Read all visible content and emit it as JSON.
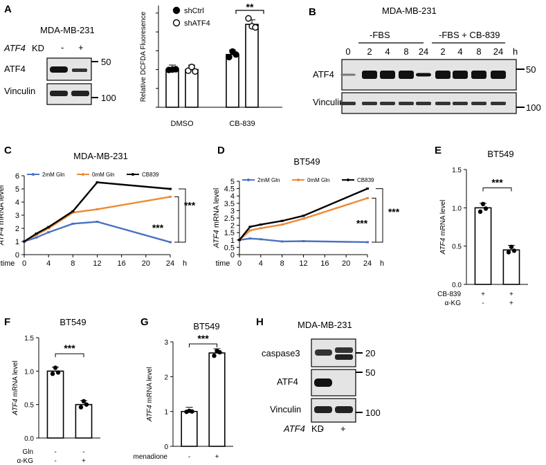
{
  "figure": {
    "panel_letters": [
      "A",
      "B",
      "C",
      "D",
      "E",
      "F",
      "G",
      "H"
    ],
    "cell_line_a": "MDA-MB-231",
    "cell_line_b": "MDA-MB-231",
    "cell_line_h": "MDA-MB-231",
    "atf4_kd_label": "ATF4",
    "kd_suffix": "KD",
    "kd_minus": "-",
    "kd_plus": "+",
    "blot_atf4": "ATF4",
    "blot_vinculin": "Vinculin",
    "blot_caspase3": "caspase3",
    "mw_20": "20",
    "mw_50": "50",
    "mw_100": "100",
    "b_group1": "-FBS",
    "b_group2": "-FBS + CB-839",
    "b_lanes": [
      "0",
      "2",
      "4",
      "8",
      "24",
      "2",
      "4",
      "8",
      "24"
    ],
    "b_h": "h",
    "time_label": "time",
    "h_unit": "h",
    "atf4_italic": "ATF4",
    "mrna_suffix": " mRNA level",
    "sig": "***"
  },
  "chart_data": [
    {
      "panel": "A",
      "type": "bar",
      "ylabel": "Relative DCFDA Fluoresence",
      "categories": [
        "DMSO",
        "CB-839"
      ],
      "series": [
        {
          "name": "shCtrl",
          "values": [
            1.0,
            1.4
          ],
          "points": [
            [
              0.99,
              1.0,
              1.01
            ],
            [
              1.33,
              1.48,
              1.4
            ]
          ]
        },
        {
          "name": "shATF4",
          "values": [
            1.0,
            2.2
          ],
          "points": [
            [
              0.97,
              1.07,
              0.95
            ],
            [
              2.36,
              2.15,
              2.12
            ]
          ]
        }
      ],
      "ylim": [
        0,
        2.7
      ],
      "significance": "**"
    },
    {
      "panel": "C",
      "type": "line",
      "title": "MDA-MB-231",
      "xlabel": "time",
      "ylabel": "ATF4 mRNA level",
      "x": [
        0,
        2,
        4,
        8,
        12,
        24
      ],
      "xticks": [
        "0",
        "4",
        "8",
        "12",
        "16",
        "20",
        "24"
      ],
      "yticks": [
        "0",
        "1",
        "2",
        "3",
        "4",
        "5",
        "6"
      ],
      "ylim": [
        0,
        6
      ],
      "series": [
        {
          "name": "2mM Gln",
          "color": "#4a72c2",
          "values": [
            1.0,
            1.3,
            1.7,
            2.35,
            2.5,
            0.95
          ]
        },
        {
          "name": "0mM Gln",
          "color": "#ed8a35",
          "values": [
            1.0,
            1.5,
            2.0,
            3.2,
            3.45,
            4.4
          ]
        },
        {
          "name": "CB839",
          "color": "#000000",
          "values": [
            1.0,
            1.6,
            2.1,
            3.3,
            5.5,
            5.0
          ]
        }
      ],
      "significance": [
        "***",
        "***"
      ]
    },
    {
      "panel": "D",
      "type": "line",
      "title": "BT549",
      "xlabel": "time",
      "ylabel": "ATF4 mRNA level",
      "x": [
        0,
        2,
        4,
        8,
        12,
        24
      ],
      "xticks": [
        "0",
        "4",
        "8",
        "12",
        "16",
        "20",
        "24"
      ],
      "yticks": [
        "0",
        "0.5",
        "1",
        "1.5",
        "2",
        "2.5",
        "3",
        "3.5",
        "4",
        "4.5",
        "5"
      ],
      "ylim": [
        0,
        5
      ],
      "series": [
        {
          "name": "2mM Gln",
          "color": "#4a72c2",
          "values": [
            1.0,
            1.1,
            1.05,
            0.9,
            0.92,
            0.85
          ]
        },
        {
          "name": "0mM Gln",
          "color": "#ed8a35",
          "values": [
            1.0,
            1.65,
            1.8,
            2.05,
            2.45,
            3.85
          ]
        },
        {
          "name": "CB839",
          "color": "#000000",
          "values": [
            1.0,
            1.9,
            2.05,
            2.3,
            2.65,
            4.5
          ]
        }
      ],
      "significance": [
        "***",
        "***"
      ]
    },
    {
      "panel": "E",
      "type": "bar",
      "title": "BT549",
      "ylabel": "ATF4 mRNA level",
      "yticks": [
        "0.0",
        "0.5",
        "1.0",
        "1.5"
      ],
      "ylim": [
        0,
        1.5
      ],
      "values": [
        1.0,
        0.45
      ],
      "points": [
        [
          0.95,
          1.05,
          0.99
        ],
        [
          0.42,
          0.49,
          0.44
        ]
      ],
      "conditions": [
        {
          "label": "CB-839",
          "values": [
            "+",
            "+"
          ]
        },
        {
          "label": "α-KG",
          "values": [
            "-",
            "+"
          ]
        }
      ],
      "significance": "***"
    },
    {
      "panel": "F",
      "type": "bar",
      "title": "BT549",
      "ylabel": "ATF4 mRNA level",
      "yticks": [
        "0.0",
        "0.5",
        "1.0",
        "1.5"
      ],
      "ylim": [
        0,
        1.5
      ],
      "values": [
        1.0,
        0.5
      ],
      "points": [
        [
          0.96,
          1.05,
          0.98
        ],
        [
          0.46,
          0.55,
          0.5
        ]
      ],
      "conditions": [
        {
          "label": "Gln",
          "values": [
            "-",
            "-"
          ]
        },
        {
          "label": "α-KG",
          "values": [
            "-",
            "+"
          ]
        }
      ],
      "significance": "***"
    },
    {
      "panel": "G",
      "type": "bar",
      "title": "BT549",
      "ylabel": "ATF4 mRNA level",
      "yticks": [
        "0",
        "1",
        "2",
        "3"
      ],
      "ylim": [
        0,
        3
      ],
      "values": [
        1.0,
        2.68
      ],
      "points": [
        [
          0.99,
          1.02,
          1.0
        ],
        [
          2.6,
          2.74,
          2.7
        ]
      ],
      "conditions": [
        {
          "label": "menadione",
          "values": [
            "-",
            "+"
          ]
        }
      ],
      "significance": "***"
    }
  ]
}
